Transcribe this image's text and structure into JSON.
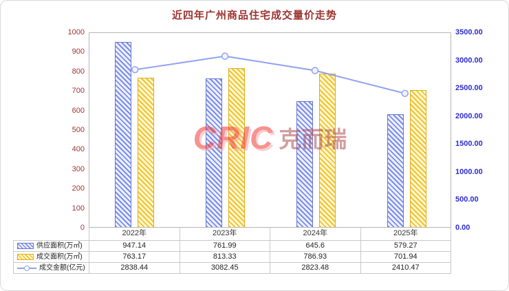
{
  "chart_data": {
    "type": "combo",
    "title": "近四年广州商品住宅成交量价走势",
    "categories": [
      "2022年",
      "2023年",
      "2024年",
      "2025年"
    ],
    "series": [
      {
        "name": "供应面积(万㎡)",
        "type": "bar",
        "axis": "left",
        "values": [
          947.14,
          761.99,
          645.6,
          579.27
        ],
        "stripe": "#7b8ce8",
        "fill": "#edf0ff",
        "border": "#6377d6"
      },
      {
        "name": "成交面积(万㎡)",
        "type": "bar",
        "axis": "left",
        "values": [
          763.17,
          813.33,
          786.93,
          701.94
        ],
        "stripe": "#f2c424",
        "fill": "#fdf6d8",
        "border": "#ddae1e"
      },
      {
        "name": "成交金额(亿元)",
        "type": "line",
        "axis": "right",
        "values": [
          2838.44,
          3082.45,
          2823.48,
          2410.47
        ],
        "color": "#8fa0ee",
        "marker_fill": "#f2f4ff"
      }
    ],
    "left_axis": {
      "min": 0,
      "max": 1000,
      "labels": [
        "0",
        "100",
        "200",
        "300",
        "400",
        "500",
        "600",
        "700",
        "800",
        "900",
        "1000"
      ]
    },
    "right_axis": {
      "min": 0,
      "max": 3500,
      "labels": [
        "0.00",
        "500.00",
        "1000.00",
        "1500.00",
        "2000.00",
        "2500.00",
        "3000.00",
        "3500.00"
      ]
    },
    "legend_position": "table-left",
    "grid": false
  },
  "watermark": {
    "latin": "CRIC",
    "cjk": "克而瑞"
  },
  "colors": {
    "title_text": "#9c3430",
    "left_axis_text": "#9c3430",
    "right_axis_text": "#2b2bd5",
    "table_text": "#222222",
    "table_border": "#c9c9c9",
    "watermark_red": "#ef3b36"
  }
}
